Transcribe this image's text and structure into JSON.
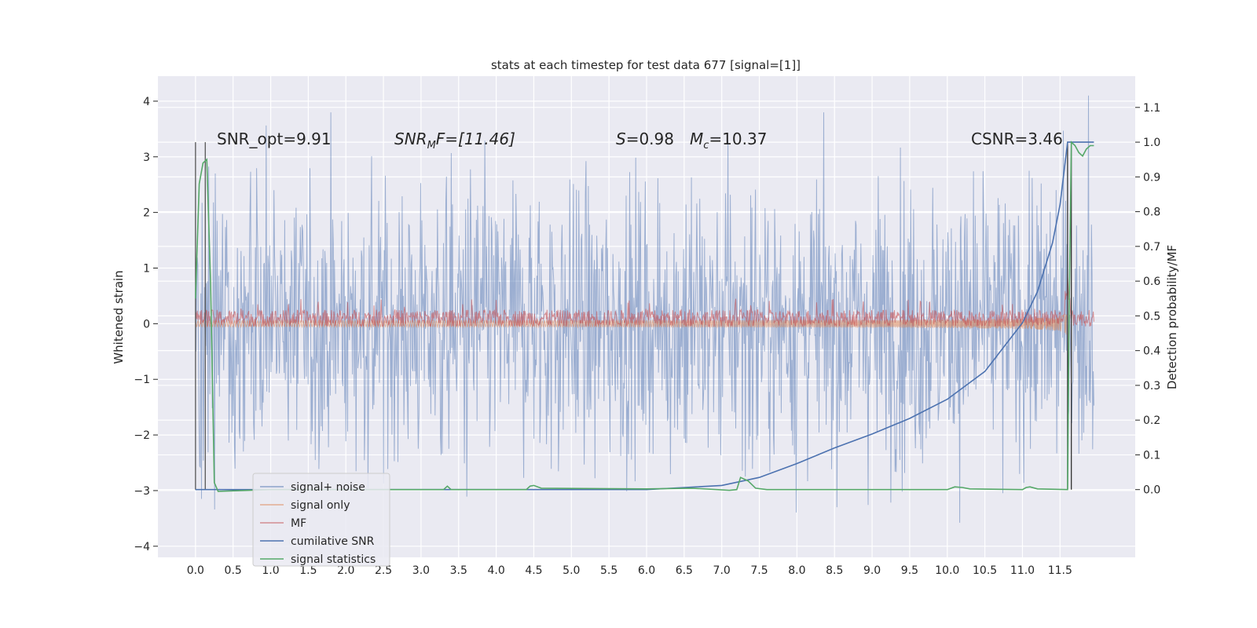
{
  "chart_data": {
    "type": "line",
    "title": "stats at each timestep for test data 677 [signal=[1]]",
    "ylabel": "Whitened strain",
    "y2label": "Detection probability/MF",
    "xlim": [
      -0.5,
      12.5
    ],
    "ylim": [
      -4.2,
      4.45
    ],
    "y2lim": [
      -0.195,
      1.19
    ],
    "xticks": [
      "0.0",
      "0.5",
      "1.0",
      "1.5",
      "2.0",
      "2.5",
      "3.0",
      "3.5",
      "4.0",
      "4.5",
      "5.0",
      "5.5",
      "6.0",
      "6.5",
      "7.0",
      "7.5",
      "8.0",
      "8.5",
      "9.0",
      "9.5",
      "10.0",
      "10.5",
      "11.0",
      "11.5"
    ],
    "yticks": [
      "4",
      "3",
      "2",
      "1",
      "0",
      "−1",
      "−2",
      "−3",
      "−4"
    ],
    "y2ticks": [
      "1.1",
      "1.0",
      "0.9",
      "0.8",
      "0.7",
      "0.6",
      "0.5",
      "0.4",
      "0.3",
      "0.2",
      "0.1",
      "0.0"
    ],
    "grid": true,
    "legend_position": "lower-left",
    "annotations": {
      "snr_opt": "SNR_opt=9.91",
      "snr_mf_main": "SNR",
      "snr_mf_sub": "M",
      "snr_mf_rest": "F=[11.46]",
      "s_main": "S",
      "s_rest": "=0.98",
      "mc_main": "M",
      "mc_sub": "c",
      "mc_rest": "=10.37",
      "csnr": "CSNR=3.46"
    },
    "series": [
      {
        "name": "signal+ noise",
        "color": "#4c72b0",
        "axis": "left",
        "envelope_amplitude": 1.4,
        "peak": 4.1,
        "x_end": 11.95
      },
      {
        "name": "signal only",
        "color": "#dd8452",
        "axis": "left",
        "chirp_end": 11.6,
        "max_amplitude": 0.9
      },
      {
        "name": "MF",
        "color": "#c44e52",
        "axis": "left",
        "baseline": 0.1,
        "band": 0.15
      },
      {
        "name": "cumilative SNR",
        "color": "#4c72b0",
        "axis": "right",
        "x": [
          0.0,
          1.0,
          2.0,
          3.0,
          4.0,
          5.0,
          6.0,
          7.0,
          7.5,
          8.0,
          8.5,
          9.0,
          9.5,
          10.0,
          10.5,
          11.0,
          11.2,
          11.4,
          11.5,
          11.6,
          11.95
        ],
        "y": [
          0.0,
          0.0,
          0.0,
          0.0,
          0.0,
          0.0,
          0.0,
          0.012,
          0.035,
          0.075,
          0.12,
          0.16,
          0.205,
          0.26,
          0.34,
          0.48,
          0.57,
          0.71,
          0.82,
          1.0,
          1.0
        ]
      },
      {
        "name": "signal statistics",
        "color": "#55a868",
        "axis": "right",
        "x": [
          0.0,
          0.05,
          0.1,
          0.15,
          0.2,
          0.25,
          0.3,
          1.0,
          3.3,
          3.35,
          3.4,
          4.4,
          4.45,
          4.5,
          4.6,
          6.0,
          6.6,
          7.1,
          7.2,
          7.25,
          7.35,
          7.45,
          7.6,
          9.0,
          10.0,
          10.1,
          10.2,
          10.3,
          11.0,
          11.05,
          11.1,
          11.2,
          11.6,
          11.62,
          11.65,
          11.7,
          11.75,
          11.8,
          11.85,
          11.9,
          11.95
        ],
        "y": [
          0.55,
          0.88,
          0.94,
          0.95,
          0.6,
          0.02,
          -0.005,
          0.0,
          0.0,
          0.01,
          0.0,
          0.0,
          0.01,
          0.012,
          0.004,
          0.002,
          0.004,
          -0.002,
          0.0,
          0.035,
          0.025,
          0.004,
          0.0,
          0.0,
          0.0,
          0.008,
          0.006,
          0.002,
          0.0,
          0.006,
          0.008,
          0.002,
          0.0,
          0.5,
          1.0,
          0.99,
          0.97,
          0.96,
          0.98,
          0.99,
          0.99
        ]
      }
    ],
    "vlines": [
      0.0,
      0.13,
      11.6,
      11.65
    ]
  }
}
